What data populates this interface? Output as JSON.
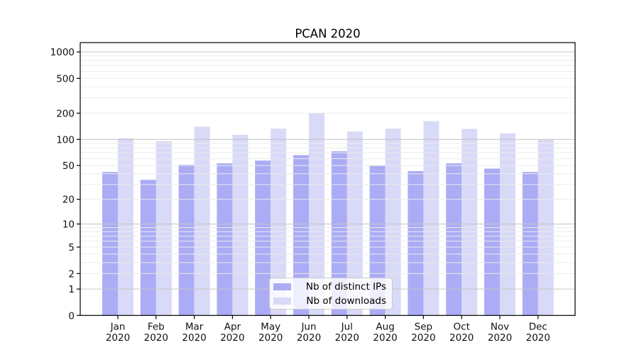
{
  "chart_data": {
    "type": "bar",
    "title": "PCAN 2020",
    "categories": [
      "Jan",
      "Feb",
      "Mar",
      "Apr",
      "May",
      "Jun",
      "Jul",
      "Aug",
      "Sep",
      "Oct",
      "Nov",
      "Dec"
    ],
    "x_tick_year": "2020",
    "series": [
      {
        "name": "Nb of distinct IPs",
        "color": "#abacf5",
        "values": [
          42,
          34,
          51,
          53,
          57,
          66,
          73,
          50,
          43,
          53,
          46,
          42
        ]
      },
      {
        "name": "Nb of downloads",
        "color": "#d9d9f8",
        "values": [
          103,
          95,
          140,
          113,
          133,
          200,
          123,
          133,
          162,
          132,
          117,
          100
        ]
      }
    ],
    "yscale": "log1p",
    "ylim": [
      0,
      1285
    ],
    "y_ticks": [
      0,
      1,
      2,
      5,
      10,
      20,
      50,
      100,
      200,
      500,
      1000
    ],
    "y_major_grid": [
      1,
      10,
      100,
      1000
    ],
    "grid": true,
    "legend_position": "lower center",
    "colors": {
      "major_grid": "#c6c6c6",
      "minor_grid": "#ebebeb",
      "spine": "#000000",
      "tick_text": "#111111",
      "legend_border": "#cccccc"
    }
  }
}
